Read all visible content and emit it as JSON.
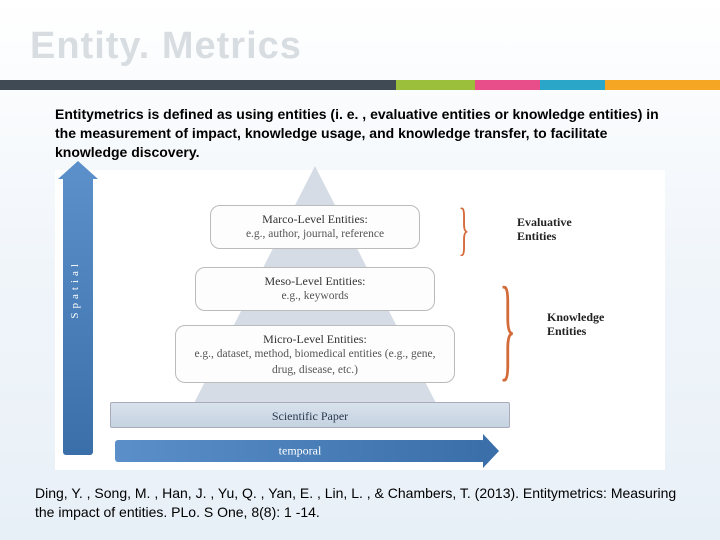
{
  "title": "Entity. Metrics",
  "accent_segments": [
    {
      "color": "#3f4a54",
      "width": "55%"
    },
    {
      "color": "#9bbf3b",
      "width": "11%"
    },
    {
      "color": "#e84e8a",
      "width": "9%"
    },
    {
      "color": "#2aa6c9",
      "width": "9%"
    },
    {
      "color": "#f5a623",
      "width": "16%"
    }
  ],
  "definition": "Entitymetrics is defined as using entities (i. e. , evaluative entities or knowledge entities) in the measurement of impact, knowledge usage, and knowledge transfer, to facilitate knowledge discovery.",
  "axes": {
    "vertical": "Spatial",
    "horizontal": "temporal"
  },
  "levels": [
    {
      "title": "Marco-Level Entities:",
      "eg": "e.g., author, journal, reference"
    },
    {
      "title": "Meso-Level Entities:",
      "eg": "e.g., keywords"
    },
    {
      "title": "Micro-Level Entities:",
      "eg": "e.g., dataset, method, biomedical entities (e.g., gene, drug, disease, etc.)"
    }
  ],
  "paper_label": "Scientific Paper",
  "brace_labels": {
    "evaluative": "Evaluative\nEntities",
    "knowledge": "Knowledge\nEntities"
  },
  "citation": "Ding, Y. , Song, M. , Han, J. , Yu, Q. , Yan, E. , Lin, L. , & Chambers, T. (2013). Entitymetrics: Measuring the impact of entities. PLo. S One, 8(8): 1 -14."
}
